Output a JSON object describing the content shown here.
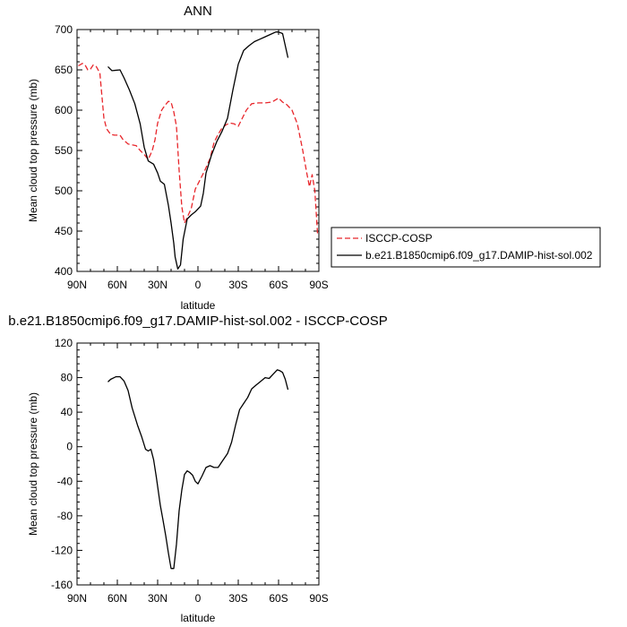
{
  "chart_data": [
    {
      "type": "line",
      "title": "ANN",
      "xlabel": "latitude",
      "ylabel": "Mean cloud top pressure (mb)",
      "xlim": [
        90,
        -90
      ],
      "ylim": [
        400,
        700
      ],
      "x_ticks": [
        "90N",
        "60N",
        "30N",
        "0",
        "30S",
        "60S",
        "90S"
      ],
      "x_tick_values": [
        90,
        60,
        30,
        0,
        -30,
        -60,
        -90
      ],
      "y_ticks": [
        400,
        450,
        500,
        550,
        600,
        650,
        700
      ],
      "legend_position": "right",
      "series": [
        {
          "name": "ISCCP-COSP",
          "color": "#e8262b",
          "dash": "dashed",
          "x": [
            89,
            86,
            84,
            82,
            80,
            78,
            76,
            73,
            70,
            68,
            65,
            62,
            58,
            56,
            52,
            49,
            46,
            43,
            40,
            37,
            34,
            32,
            30,
            27,
            25,
            22,
            20,
            18,
            16,
            14,
            12,
            10,
            8,
            5,
            2,
            -2,
            -5,
            -9,
            -12,
            -15,
            -18,
            -21,
            -24,
            -27,
            -30,
            -33,
            -36,
            -40,
            -45,
            -50,
            -55,
            -60,
            -63,
            -66,
            -70,
            -74,
            -78,
            -81,
            -83,
            -85,
            -87,
            -89
          ],
          "y": [
            655,
            658,
            656,
            650,
            651,
            656,
            655,
            646,
            590,
            577,
            570,
            569,
            569,
            564,
            558,
            557,
            556,
            550,
            545,
            539,
            550,
            563,
            584,
            600,
            605,
            611,
            610,
            598,
            580,
            525,
            480,
            460,
            467,
            478,
            502,
            515,
            525,
            540,
            560,
            570,
            578,
            582,
            584,
            583,
            580,
            590,
            600,
            608,
            609,
            609,
            610,
            615,
            610,
            607,
            600,
            583,
            550,
            522,
            505,
            520,
            500,
            447
          ]
        },
        {
          "name": "b.e21.B1850cmip6.f09_g17.DAMIP-hist-sol.002",
          "color": "#000000",
          "dash": "solid",
          "x": [
            67,
            64,
            58,
            55,
            51,
            47,
            43,
            40,
            37,
            33,
            30,
            28,
            25,
            22,
            20,
            18,
            17,
            15,
            13,
            11,
            8,
            5,
            2,
            -2,
            -4,
            -6,
            -10,
            -14,
            -18,
            -22,
            -26,
            -30,
            -34,
            -38,
            -42,
            -46,
            -50,
            -54,
            -58,
            -60,
            -63,
            -65,
            -67
          ],
          "y": [
            654,
            649,
            650,
            640,
            625,
            608,
            583,
            554,
            537,
            533,
            522,
            512,
            508,
            482,
            460,
            435,
            418,
            403,
            408,
            440,
            465,
            470,
            474,
            481,
            497,
            522,
            544,
            561,
            574,
            590,
            625,
            657,
            674,
            680,
            685,
            688,
            691,
            694,
            697,
            697,
            695,
            680,
            665
          ]
        }
      ]
    },
    {
      "type": "line",
      "title": "b.e21.B1850cmip6.f09_g17.DAMIP-hist-sol.002 - ISCCP-COSP",
      "xlabel": "latitude",
      "ylabel": "Mean cloud top pressure (mb)",
      "xlim": [
        90,
        -90
      ],
      "ylim": [
        -160,
        120
      ],
      "x_ticks": [
        "90N",
        "60N",
        "30N",
        "0",
        "30S",
        "60S",
        "90S"
      ],
      "x_tick_values": [
        90,
        60,
        30,
        0,
        -30,
        -60,
        -90
      ],
      "y_ticks": [
        120,
        80,
        40,
        0,
        -40,
        -80,
        -120,
        -160
      ],
      "series": [
        {
          "color": "#000000",
          "dash": "solid",
          "x": [
            67,
            65,
            61,
            58,
            55,
            52,
            49,
            45,
            42,
            39,
            37,
            35,
            33,
            31,
            28,
            26,
            24,
            22,
            20,
            18,
            16,
            14,
            12,
            10,
            8,
            6,
            4,
            2,
            0,
            -3,
            -6,
            -9,
            -12,
            -15,
            -18,
            -22,
            -25,
            -28,
            -31,
            -34,
            -37,
            -40,
            -43,
            -47,
            -50,
            -53,
            -56,
            -59,
            -61,
            -63,
            -65,
            -67
          ],
          "y": [
            75,
            78,
            81,
            81,
            76,
            65,
            45,
            25,
            12,
            -3,
            -5,
            -3,
            -15,
            -35,
            -68,
            -85,
            -103,
            -123,
            -141,
            -141,
            -113,
            -74,
            -50,
            -32,
            -28,
            -30,
            -33,
            -40,
            -43,
            -34,
            -24,
            -22,
            -24,
            -24,
            -17,
            -8,
            5,
            25,
            43,
            50,
            57,
            67,
            71,
            76,
            80,
            79,
            84,
            89,
            88,
            86,
            78,
            66
          ]
        }
      ]
    }
  ]
}
